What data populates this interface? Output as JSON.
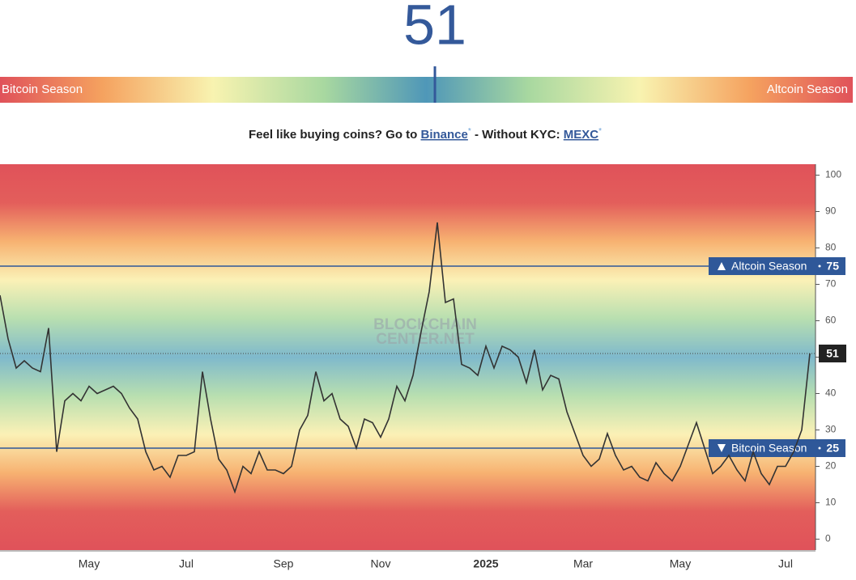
{
  "index": {
    "value": 51,
    "left_label": "Bitcoin Season",
    "right_label": "Altcoin Season"
  },
  "promo": {
    "text1": "Feel like buying coins? Go to",
    "link1": "Binance",
    "mark": "*",
    "text2": "- Without KYC:",
    "link2": "MEXC"
  },
  "chart_data": {
    "type": "line",
    "watermark": [
      "BLOCKCHAIN",
      "CENTER.NET"
    ],
    "categories": [
      null,
      null,
      null,
      null,
      null,
      null,
      null,
      null,
      null,
      null,
      null,
      "May",
      null,
      null,
      null,
      null,
      null,
      null,
      null,
      null,
      null,
      null,
      null,
      "Jul",
      null,
      null,
      null,
      null,
      null,
      null,
      null,
      null,
      null,
      null,
      null,
      "Sep",
      null,
      null,
      null,
      null,
      null,
      null,
      null,
      null,
      null,
      null,
      null,
      "Nov",
      null,
      null,
      null,
      null,
      null,
      null,
      null,
      null,
      null,
      null,
      null,
      null,
      "2025",
      null,
      null,
      null,
      null,
      null,
      null,
      null,
      null,
      null,
      null,
      null,
      "Mar",
      null,
      null,
      null,
      null,
      null,
      null,
      null,
      null,
      null,
      null,
      null,
      "May",
      null,
      null,
      null,
      null,
      null,
      null,
      null,
      null,
      null,
      null,
      null,
      null,
      "Jul",
      null,
      null,
      null
    ],
    "values": [
      67,
      55,
      47,
      49,
      47,
      46,
      58,
      24,
      38,
      40,
      38,
      42,
      40,
      41,
      42,
      40,
      36,
      33,
      24,
      19,
      20,
      17,
      23,
      23,
      24,
      46,
      33,
      22,
      19,
      13,
      20,
      18,
      24,
      19,
      19,
      18,
      20,
      30,
      34,
      46,
      38,
      40,
      33,
      31,
      25,
      33,
      32,
      28,
      33,
      42,
      38,
      45,
      57,
      68,
      87,
      65,
      66,
      48,
      47,
      45,
      53,
      47,
      53,
      52,
      50,
      43,
      52,
      41,
      45,
      44,
      35,
      29,
      23,
      20,
      22,
      29,
      23,
      19,
      20,
      17,
      16,
      21,
      18,
      16,
      20,
      26,
      32,
      25,
      18,
      20,
      23,
      19,
      16,
      24,
      18,
      15,
      20,
      20,
      24,
      30,
      51
    ],
    "color": "#333333",
    "ylim": [
      -3,
      103
    ],
    "yticks": [
      0,
      10,
      20,
      30,
      40,
      50,
      60,
      70,
      80,
      90,
      100
    ],
    "thresholds": [
      {
        "label": "Altcoin Season",
        "value": 75
      },
      {
        "label": "Bitcoin Season",
        "value": 25
      }
    ],
    "current_value": 51
  }
}
